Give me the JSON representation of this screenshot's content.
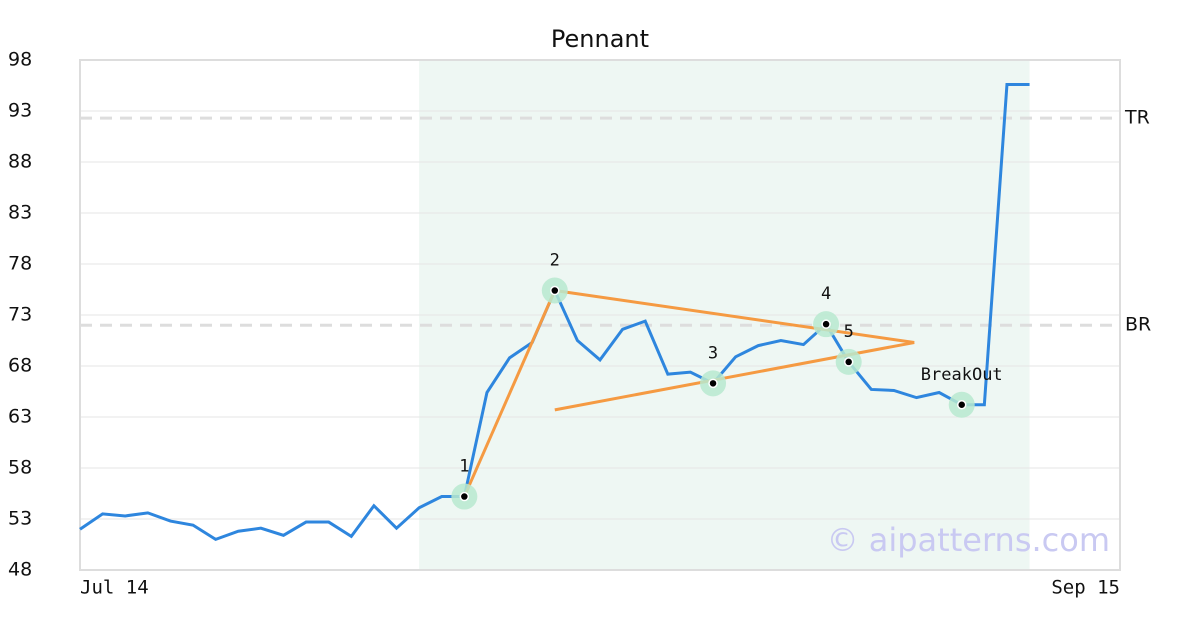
{
  "chart_data": {
    "type": "line",
    "title": "Pennant",
    "categories": [
      "Jul 14",
      null,
      null,
      null,
      null,
      null,
      null,
      null,
      null,
      null,
      null,
      null,
      null,
      null,
      null,
      null,
      null,
      null,
      null,
      null,
      null,
      null,
      null,
      null,
      null,
      null,
      null,
      null,
      null,
      null,
      null,
      null,
      null,
      null,
      null,
      null,
      null,
      null,
      null,
      null,
      null,
      null,
      null,
      null,
      null,
      null,
      "Sep 15"
    ],
    "series": [
      {
        "color": "#2e86de",
        "values": [
          52.0,
          53.5,
          53.3,
          53.6,
          52.8,
          52.4,
          51.0,
          51.8,
          52.1,
          51.4,
          52.7,
          52.7,
          51.3,
          54.3,
          52.1,
          54.1,
          55.2,
          55.2,
          65.4,
          68.8,
          70.3,
          75.4,
          70.5,
          68.6,
          71.6,
          72.4,
          67.2,
          67.4,
          66.3,
          68.9,
          70.0,
          70.5,
          70.1,
          72.1,
          68.4,
          65.7,
          65.6,
          64.9,
          65.4,
          64.2,
          64.2,
          95.6,
          95.6,
          null,
          null,
          null,
          null
        ]
      }
    ],
    "shade_range": [
      15,
      42
    ],
    "shade_color": "#eef7f3",
    "pattern_lines": [
      {
        "color": "#f59a42",
        "x": [
          17,
          21
        ],
        "y": [
          55.2,
          75.4
        ]
      },
      {
        "color": "#f59a42",
        "x": [
          21,
          36.9
        ],
        "y": [
          75.4,
          70.3
        ]
      },
      {
        "color": "#f59a42",
        "x": [
          21,
          36.9
        ],
        "y": [
          63.7,
          70.3
        ]
      }
    ],
    "pivots": [
      {
        "label": "1",
        "x": 17,
        "y": 55.2
      },
      {
        "label": "2",
        "x": 21,
        "y": 75.4
      },
      {
        "label": "3",
        "x": 28,
        "y": 66.3
      },
      {
        "label": "4",
        "x": 33,
        "y": 72.1
      },
      {
        "label": "5",
        "x": 34,
        "y": 68.4
      },
      {
        "label": "BreakOut",
        "x": 39,
        "y": 64.2
      }
    ],
    "levels": [
      {
        "label": "TR",
        "value": 92.3
      },
      {
        "label": "BR",
        "value": 72.0
      }
    ],
    "ylim": [
      48,
      98
    ],
    "yticks": [
      48,
      53,
      58,
      63,
      68,
      73,
      78,
      83,
      88,
      93,
      98
    ],
    "grid": true,
    "watermark": "© aipatterns.com"
  }
}
